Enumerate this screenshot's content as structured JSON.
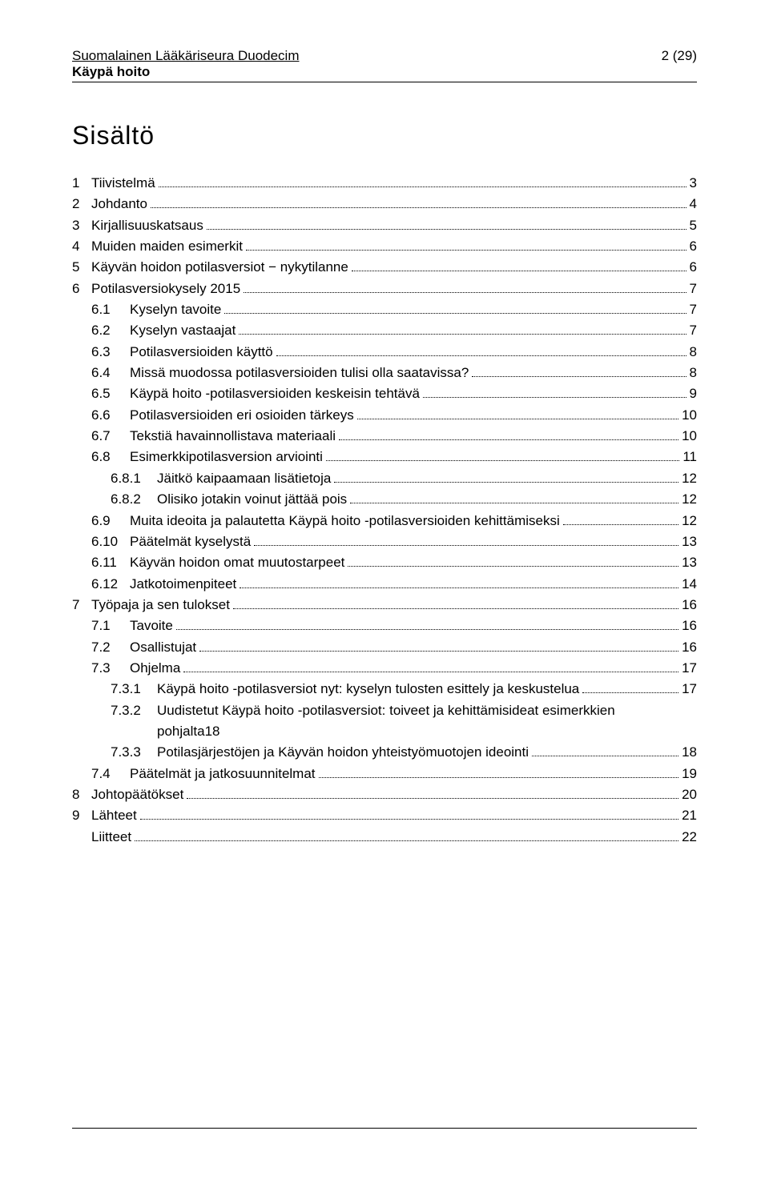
{
  "header": {
    "org": "Suomalainen Lääkäriseura Duodecim",
    "sub": "Käypä hoito",
    "pagenum": "2 (29)"
  },
  "title": "Sisältö",
  "toc": [
    {
      "indent": 0,
      "num": "1",
      "label": "Tiivistelmä",
      "page": "3"
    },
    {
      "indent": 0,
      "num": "2",
      "label": "Johdanto",
      "page": "4"
    },
    {
      "indent": 0,
      "num": "3",
      "label": "Kirjallisuuskatsaus",
      "page": "5"
    },
    {
      "indent": 0,
      "num": "4",
      "label": "Muiden maiden esimerkit",
      "page": "6"
    },
    {
      "indent": 0,
      "num": "5",
      "label": "Käyvän hoidon potilasversiot − nykytilanne",
      "page": "6"
    },
    {
      "indent": 0,
      "num": "6",
      "label": "Potilasversiokysely 2015",
      "page": "7"
    },
    {
      "indent": 1,
      "num": "6.1",
      "label": "Kyselyn tavoite",
      "page": "7"
    },
    {
      "indent": 1,
      "num": "6.2",
      "label": "Kyselyn vastaajat",
      "page": "7"
    },
    {
      "indent": 1,
      "num": "6.3",
      "label": "Potilasversioiden käyttö",
      "page": "8"
    },
    {
      "indent": 1,
      "num": "6.4",
      "label": "Missä muodossa potilasversioiden tulisi olla saatavissa?",
      "page": "8"
    },
    {
      "indent": 1,
      "num": "6.5",
      "label": "Käypä hoito -potilasversioiden keskeisin tehtävä",
      "page": "9"
    },
    {
      "indent": 1,
      "num": "6.6",
      "label": "Potilasversioiden eri osioiden tärkeys",
      "page": "10"
    },
    {
      "indent": 1,
      "num": "6.7",
      "label": "Tekstiä havainnollistava materiaali",
      "page": "10"
    },
    {
      "indent": 1,
      "num": "6.8",
      "label": "Esimerkkipotilasversion arviointi",
      "page": "11"
    },
    {
      "indent": 2,
      "num": "6.8.1",
      "label": "Jäitkö kaipaamaan lisätietoja",
      "page": "12"
    },
    {
      "indent": 2,
      "num": "6.8.2",
      "label": "Olisiko jotakin voinut jättää pois",
      "page": "12"
    },
    {
      "indent": 1,
      "num": "6.9",
      "label": "Muita ideoita ja palautetta Käypä hoito -potilasversioiden kehittämiseksi",
      "page": "12"
    },
    {
      "indent": 1,
      "num": "6.10",
      "label": "Päätelmät kyselystä",
      "page": "13"
    },
    {
      "indent": 1,
      "num": "6.11",
      "label": "Käyvän hoidon omat muutostarpeet",
      "page": "13"
    },
    {
      "indent": 1,
      "num": "6.12",
      "label": "Jatkotoimenpiteet",
      "page": "14"
    },
    {
      "indent": 0,
      "num": "7",
      "label": "Työpaja ja sen tulokset",
      "page": "16"
    },
    {
      "indent": 1,
      "num": "7.1",
      "label": "Tavoite",
      "page": "16"
    },
    {
      "indent": 1,
      "num": "7.2",
      "label": "Osallistujat",
      "page": "16"
    },
    {
      "indent": 1,
      "num": "7.3",
      "label": "Ohjelma",
      "page": "17"
    },
    {
      "indent": 2,
      "num": "7.3.1",
      "label": "Käypä hoito -potilasversiot nyt: kyselyn tulosten esittely ja keskustelua",
      "page": "17"
    },
    {
      "indent": 2,
      "num": "7.3.2",
      "label": "Uudistetut Käypä hoito -potilasversiot: toiveet ja kehittämisideat esimerkkien pohjalta",
      "page": "18",
      "wrap": true
    },
    {
      "indent": 2,
      "num": "7.3.3",
      "label": "Potilasjärjestöjen ja Käyvän hoidon yhteistyömuotojen ideointi",
      "page": "18"
    },
    {
      "indent": 1,
      "num": "7.4",
      "label": "Päätelmät ja jatkosuunnitelmat",
      "page": "19"
    },
    {
      "indent": 0,
      "num": "8",
      "label": "Johtopäätökset",
      "page": "20"
    },
    {
      "indent": 0,
      "num": "9",
      "label": "Lähteet",
      "page": "21"
    },
    {
      "indent": 0,
      "num": "",
      "label": "Liitteet",
      "page": "22"
    }
  ]
}
